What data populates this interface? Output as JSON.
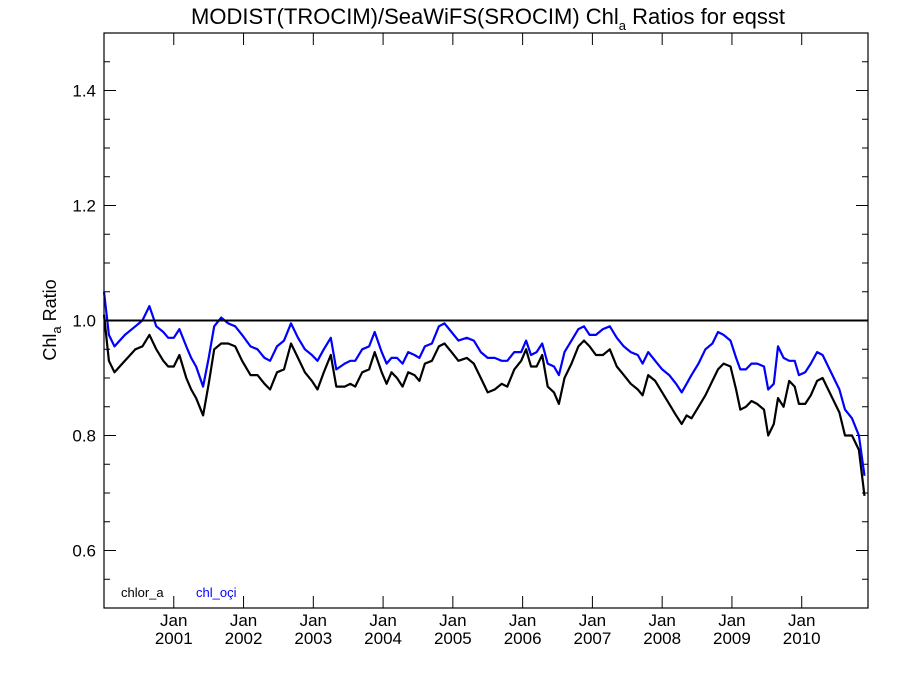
{
  "chart_data": {
    "type": "line",
    "title": {
      "pre": "MODIST(TROCIM)/SeaWiFS(SROCIM)  Chl",
      "sub": "a",
      "post": " Ratios for eqsst"
    },
    "ylabel": {
      "pre": "Chl",
      "sub": "a",
      "post": " Ratio"
    },
    "xlabel": "",
    "xlim": [
      2000.0,
      2010.95
    ],
    "ylim": [
      0.5,
      1.5
    ],
    "yticks": [
      {
        "value": 0.6,
        "label": "0.6"
      },
      {
        "value": 0.8,
        "label": "0.8"
      },
      {
        "value": 1.0,
        "label": "1.0"
      },
      {
        "value": 1.2,
        "label": "1.2"
      },
      {
        "value": 1.4,
        "label": "1.4"
      }
    ],
    "xticks": [
      {
        "value": 2001.0,
        "month": "Jan",
        "year": "2001"
      },
      {
        "value": 2002.0,
        "month": "Jan",
        "year": "2002"
      },
      {
        "value": 2003.0,
        "month": "Jan",
        "year": "2003"
      },
      {
        "value": 2004.0,
        "month": "Jan",
        "year": "2004"
      },
      {
        "value": 2005.0,
        "month": "Jan",
        "year": "2005"
      },
      {
        "value": 2006.0,
        "month": "Jan",
        "year": "2006"
      },
      {
        "value": 2007.0,
        "month": "Jan",
        "year": "2007"
      },
      {
        "value": 2008.0,
        "month": "Jan",
        "year": "2008"
      },
      {
        "value": 2009.0,
        "month": "Jan",
        "year": "2009"
      },
      {
        "value": 2010.0,
        "month": "Jan",
        "year": "2010"
      }
    ],
    "reference_line": {
      "y": 1.0,
      "color": "#000000"
    },
    "grid": false,
    "legend_position": "bottom-left",
    "series": [
      {
        "name": "chlor_a",
        "color": "#000000",
        "points": [
          [
            2000.0,
            1.01
          ],
          [
            2000.07,
            0.93
          ],
          [
            2000.15,
            0.91
          ],
          [
            2000.3,
            0.93
          ],
          [
            2000.45,
            0.95
          ],
          [
            2000.55,
            0.955
          ],
          [
            2000.65,
            0.975
          ],
          [
            2000.75,
            0.95
          ],
          [
            2000.85,
            0.93
          ],
          [
            2000.92,
            0.92
          ],
          [
            2001.0,
            0.92
          ],
          [
            2001.08,
            0.94
          ],
          [
            2001.18,
            0.9
          ],
          [
            2001.25,
            0.88
          ],
          [
            2001.32,
            0.865
          ],
          [
            2001.42,
            0.835
          ],
          [
            2001.5,
            0.89
          ],
          [
            2001.58,
            0.95
          ],
          [
            2001.68,
            0.96
          ],
          [
            2001.78,
            0.96
          ],
          [
            2001.88,
            0.955
          ],
          [
            2001.98,
            0.93
          ],
          [
            2002.1,
            0.905
          ],
          [
            2002.2,
            0.905
          ],
          [
            2002.3,
            0.89
          ],
          [
            2002.38,
            0.88
          ],
          [
            2002.48,
            0.91
          ],
          [
            2002.58,
            0.915
          ],
          [
            2002.68,
            0.96
          ],
          [
            2002.78,
            0.935
          ],
          [
            2002.88,
            0.91
          ],
          [
            2002.98,
            0.895
          ],
          [
            2003.06,
            0.88
          ],
          [
            2003.15,
            0.91
          ],
          [
            2003.25,
            0.94
          ],
          [
            2003.33,
            0.885
          ],
          [
            2003.45,
            0.885
          ],
          [
            2003.53,
            0.89
          ],
          [
            2003.6,
            0.885
          ],
          [
            2003.7,
            0.91
          ],
          [
            2003.8,
            0.915
          ],
          [
            2003.88,
            0.945
          ],
          [
            2003.98,
            0.91
          ],
          [
            2004.05,
            0.89
          ],
          [
            2004.12,
            0.91
          ],
          [
            2004.2,
            0.9
          ],
          [
            2004.28,
            0.885
          ],
          [
            2004.36,
            0.91
          ],
          [
            2004.45,
            0.905
          ],
          [
            2004.52,
            0.895
          ],
          [
            2004.6,
            0.925
          ],
          [
            2004.7,
            0.93
          ],
          [
            2004.8,
            0.955
          ],
          [
            2004.88,
            0.96
          ],
          [
            2004.98,
            0.945
          ],
          [
            2005.08,
            0.93
          ],
          [
            2005.2,
            0.935
          ],
          [
            2005.3,
            0.925
          ],
          [
            2005.4,
            0.9
          ],
          [
            2005.5,
            0.875
          ],
          [
            2005.6,
            0.88
          ],
          [
            2005.7,
            0.89
          ],
          [
            2005.78,
            0.885
          ],
          [
            2005.88,
            0.915
          ],
          [
            2005.98,
            0.93
          ],
          [
            2006.05,
            0.95
          ],
          [
            2006.12,
            0.92
          ],
          [
            2006.2,
            0.92
          ],
          [
            2006.28,
            0.94
          ],
          [
            2006.36,
            0.885
          ],
          [
            2006.45,
            0.875
          ],
          [
            2006.52,
            0.855
          ],
          [
            2006.6,
            0.9
          ],
          [
            2006.7,
            0.925
          ],
          [
            2006.8,
            0.955
          ],
          [
            2006.88,
            0.965
          ],
          [
            2006.96,
            0.955
          ],
          [
            2007.05,
            0.94
          ],
          [
            2007.15,
            0.94
          ],
          [
            2007.25,
            0.95
          ],
          [
            2007.35,
            0.92
          ],
          [
            2007.45,
            0.905
          ],
          [
            2007.55,
            0.89
          ],
          [
            2007.65,
            0.88
          ],
          [
            2007.72,
            0.87
          ],
          [
            2007.8,
            0.905
          ],
          [
            2007.9,
            0.895
          ],
          [
            2008.0,
            0.875
          ],
          [
            2008.1,
            0.855
          ],
          [
            2008.2,
            0.835
          ],
          [
            2008.28,
            0.82
          ],
          [
            2008.35,
            0.835
          ],
          [
            2008.42,
            0.83
          ],
          [
            2008.52,
            0.85
          ],
          [
            2008.62,
            0.87
          ],
          [
            2008.72,
            0.895
          ],
          [
            2008.8,
            0.915
          ],
          [
            2008.88,
            0.925
          ],
          [
            2008.98,
            0.92
          ],
          [
            2009.06,
            0.88
          ],
          [
            2009.12,
            0.845
          ],
          [
            2009.2,
            0.85
          ],
          [
            2009.28,
            0.86
          ],
          [
            2009.36,
            0.855
          ],
          [
            2009.46,
            0.845
          ],
          [
            2009.52,
            0.8
          ],
          [
            2009.6,
            0.82
          ],
          [
            2009.66,
            0.865
          ],
          [
            2009.74,
            0.85
          ],
          [
            2009.82,
            0.895
          ],
          [
            2009.9,
            0.885
          ],
          [
            2009.96,
            0.855
          ],
          [
            2010.05,
            0.855
          ],
          [
            2010.13,
            0.87
          ],
          [
            2010.22,
            0.895
          ],
          [
            2010.3,
            0.9
          ],
          [
            2010.38,
            0.88
          ],
          [
            2010.46,
            0.86
          ],
          [
            2010.54,
            0.84
          ],
          [
            2010.62,
            0.8
          ],
          [
            2010.72,
            0.8
          ],
          [
            2010.82,
            0.775
          ],
          [
            2010.9,
            0.695
          ]
        ]
      },
      {
        "name": "chl_oçi",
        "color": "#0000ff",
        "points": [
          [
            2000.0,
            1.05
          ],
          [
            2000.07,
            0.975
          ],
          [
            2000.15,
            0.955
          ],
          [
            2000.3,
            0.975
          ],
          [
            2000.45,
            0.99
          ],
          [
            2000.55,
            1.0
          ],
          [
            2000.65,
            1.025
          ],
          [
            2000.75,
            0.99
          ],
          [
            2000.85,
            0.98
          ],
          [
            2000.92,
            0.97
          ],
          [
            2001.0,
            0.97
          ],
          [
            2001.08,
            0.985
          ],
          [
            2001.18,
            0.955
          ],
          [
            2001.25,
            0.935
          ],
          [
            2001.32,
            0.92
          ],
          [
            2001.42,
            0.885
          ],
          [
            2001.5,
            0.935
          ],
          [
            2001.58,
            0.99
          ],
          [
            2001.68,
            1.005
          ],
          [
            2001.78,
            0.995
          ],
          [
            2001.88,
            0.99
          ],
          [
            2001.98,
            0.975
          ],
          [
            2002.1,
            0.955
          ],
          [
            2002.2,
            0.95
          ],
          [
            2002.3,
            0.935
          ],
          [
            2002.38,
            0.93
          ],
          [
            2002.48,
            0.955
          ],
          [
            2002.58,
            0.965
          ],
          [
            2002.68,
            0.995
          ],
          [
            2002.78,
            0.97
          ],
          [
            2002.88,
            0.95
          ],
          [
            2002.98,
            0.94
          ],
          [
            2003.06,
            0.93
          ],
          [
            2003.15,
            0.95
          ],
          [
            2003.25,
            0.97
          ],
          [
            2003.33,
            0.915
          ],
          [
            2003.45,
            0.925
          ],
          [
            2003.53,
            0.93
          ],
          [
            2003.6,
            0.93
          ],
          [
            2003.7,
            0.95
          ],
          [
            2003.8,
            0.955
          ],
          [
            2003.88,
            0.98
          ],
          [
            2003.98,
            0.945
          ],
          [
            2004.05,
            0.925
          ],
          [
            2004.12,
            0.935
          ],
          [
            2004.2,
            0.935
          ],
          [
            2004.28,
            0.925
          ],
          [
            2004.36,
            0.945
          ],
          [
            2004.45,
            0.94
          ],
          [
            2004.52,
            0.935
          ],
          [
            2004.6,
            0.955
          ],
          [
            2004.7,
            0.96
          ],
          [
            2004.8,
            0.99
          ],
          [
            2004.88,
            0.995
          ],
          [
            2004.98,
            0.98
          ],
          [
            2005.08,
            0.965
          ],
          [
            2005.2,
            0.97
          ],
          [
            2005.3,
            0.965
          ],
          [
            2005.4,
            0.945
          ],
          [
            2005.5,
            0.935
          ],
          [
            2005.6,
            0.935
          ],
          [
            2005.7,
            0.93
          ],
          [
            2005.78,
            0.93
          ],
          [
            2005.88,
            0.945
          ],
          [
            2005.98,
            0.945
          ],
          [
            2006.05,
            0.965
          ],
          [
            2006.12,
            0.94
          ],
          [
            2006.2,
            0.945
          ],
          [
            2006.28,
            0.96
          ],
          [
            2006.36,
            0.925
          ],
          [
            2006.45,
            0.92
          ],
          [
            2006.52,
            0.905
          ],
          [
            2006.6,
            0.945
          ],
          [
            2006.7,
            0.965
          ],
          [
            2006.8,
            0.985
          ],
          [
            2006.88,
            0.99
          ],
          [
            2006.96,
            0.975
          ],
          [
            2007.05,
            0.975
          ],
          [
            2007.15,
            0.985
          ],
          [
            2007.25,
            0.99
          ],
          [
            2007.35,
            0.97
          ],
          [
            2007.45,
            0.955
          ],
          [
            2007.55,
            0.945
          ],
          [
            2007.65,
            0.94
          ],
          [
            2007.72,
            0.925
          ],
          [
            2007.8,
            0.945
          ],
          [
            2007.9,
            0.93
          ],
          [
            2008.0,
            0.915
          ],
          [
            2008.1,
            0.905
          ],
          [
            2008.2,
            0.89
          ],
          [
            2008.28,
            0.875
          ],
          [
            2008.35,
            0.89
          ],
          [
            2008.42,
            0.905
          ],
          [
            2008.52,
            0.925
          ],
          [
            2008.62,
            0.95
          ],
          [
            2008.72,
            0.96
          ],
          [
            2008.8,
            0.98
          ],
          [
            2008.88,
            0.975
          ],
          [
            2008.98,
            0.965
          ],
          [
            2009.06,
            0.935
          ],
          [
            2009.12,
            0.915
          ],
          [
            2009.2,
            0.915
          ],
          [
            2009.28,
            0.925
          ],
          [
            2009.36,
            0.925
          ],
          [
            2009.46,
            0.92
          ],
          [
            2009.52,
            0.88
          ],
          [
            2009.6,
            0.89
          ],
          [
            2009.66,
            0.955
          ],
          [
            2009.74,
            0.935
          ],
          [
            2009.82,
            0.93
          ],
          [
            2009.9,
            0.93
          ],
          [
            2009.96,
            0.905
          ],
          [
            2010.05,
            0.91
          ],
          [
            2010.13,
            0.925
          ],
          [
            2010.22,
            0.945
          ],
          [
            2010.3,
            0.94
          ],
          [
            2010.38,
            0.92
          ],
          [
            2010.46,
            0.9
          ],
          [
            2010.54,
            0.88
          ],
          [
            2010.62,
            0.845
          ],
          [
            2010.72,
            0.83
          ],
          [
            2010.82,
            0.8
          ],
          [
            2010.9,
            0.73
          ]
        ]
      }
    ]
  }
}
